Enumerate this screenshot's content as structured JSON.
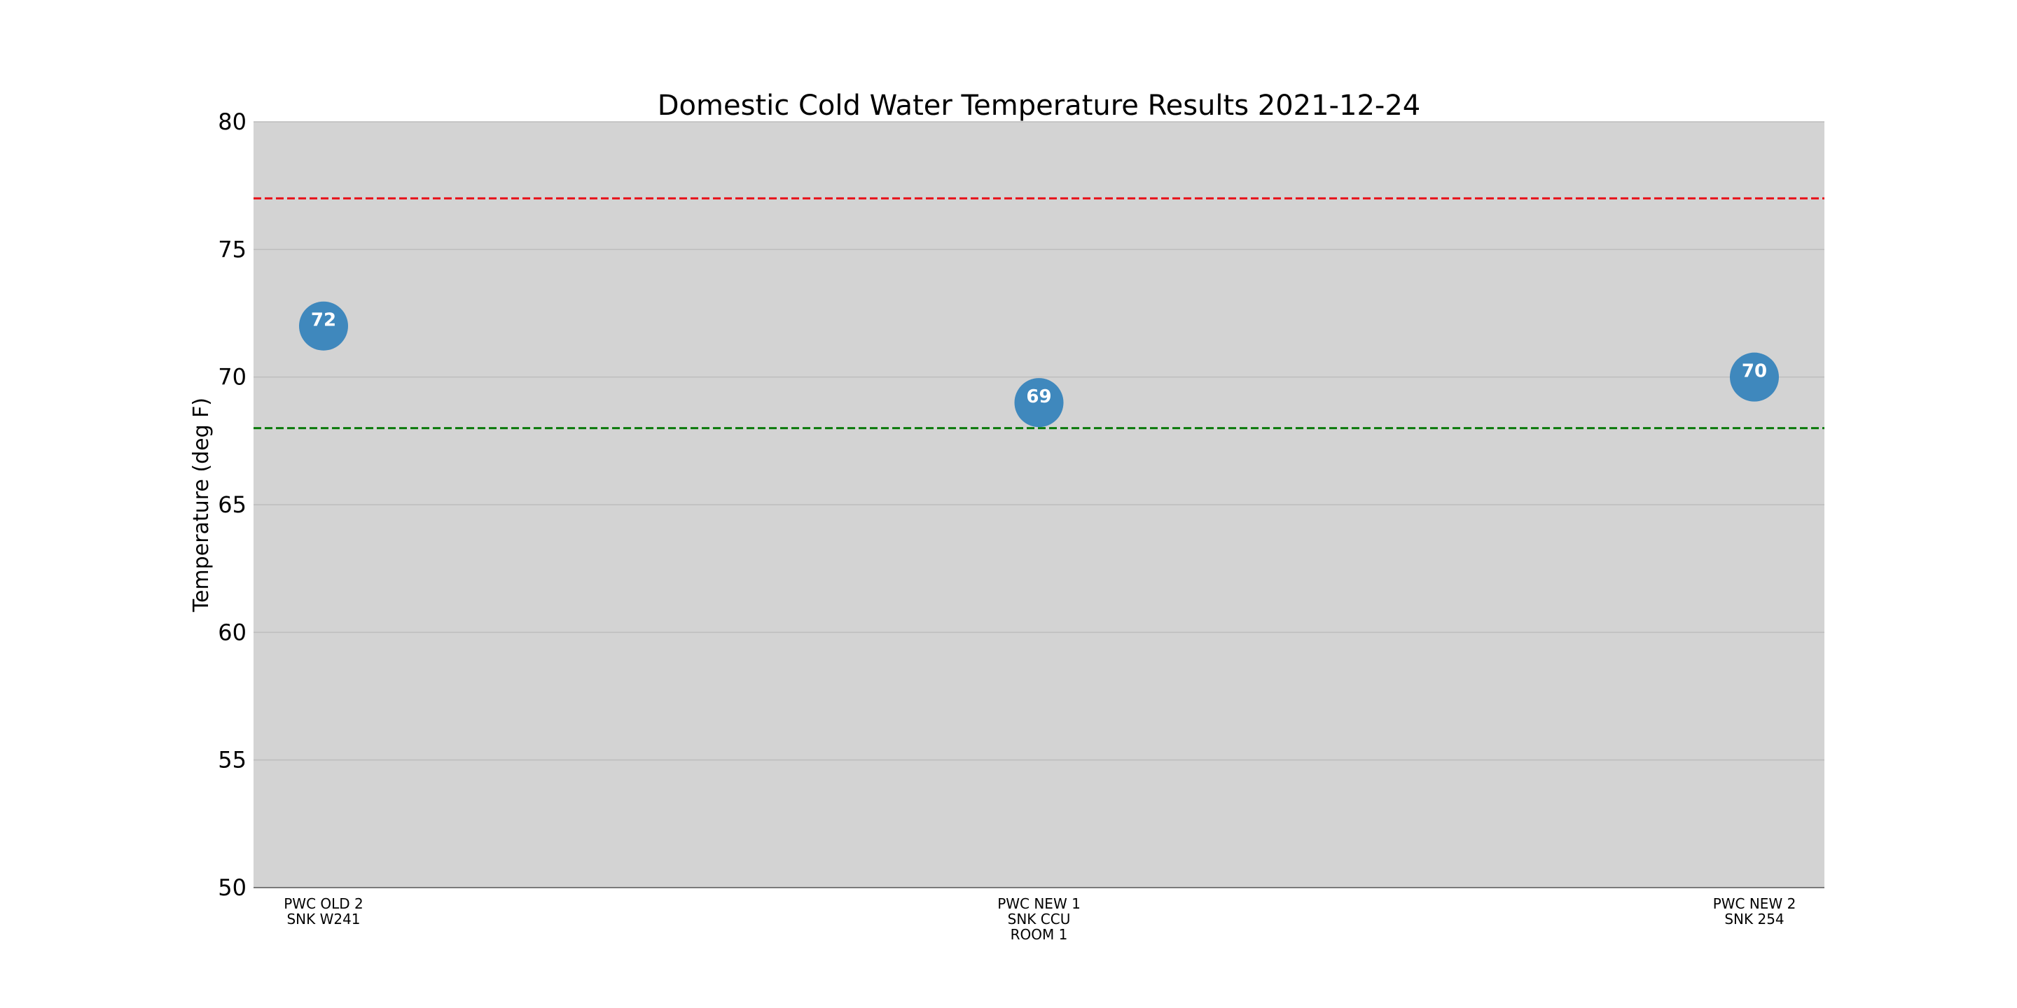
{
  "chart_data": {
    "type": "scatter",
    "title": "Domestic Cold Water Temperature Results 2021-12-24",
    "ylabel": "Temperature (deg F)",
    "xlabel": "",
    "ylim": [
      50,
      80
    ],
    "yticks": [
      50,
      55,
      60,
      65,
      70,
      75,
      80
    ],
    "grid": "horizontal",
    "categories": [
      [
        "PWC OLD 2",
        "SNK W241"
      ],
      [
        "PWC NEW 1",
        "SNK CCU",
        "ROOM 1"
      ],
      [
        "PWC NEW 2",
        "SNK 254"
      ]
    ],
    "series": [
      {
        "values": [
          72,
          69,
          70
        ],
        "labels": [
          "72",
          "69",
          "70"
        ],
        "color": "#3f88bd"
      }
    ],
    "reference_lines": [
      {
        "y": 77,
        "color": "#e8121a",
        "style": "dashed"
      },
      {
        "y": 68,
        "color": "#0a7a0a",
        "style": "dashed"
      }
    ],
    "colors": {
      "plot_background": "#d3d3d3",
      "gridline": "#bdbdbd",
      "marker": "#3f88bd"
    }
  }
}
